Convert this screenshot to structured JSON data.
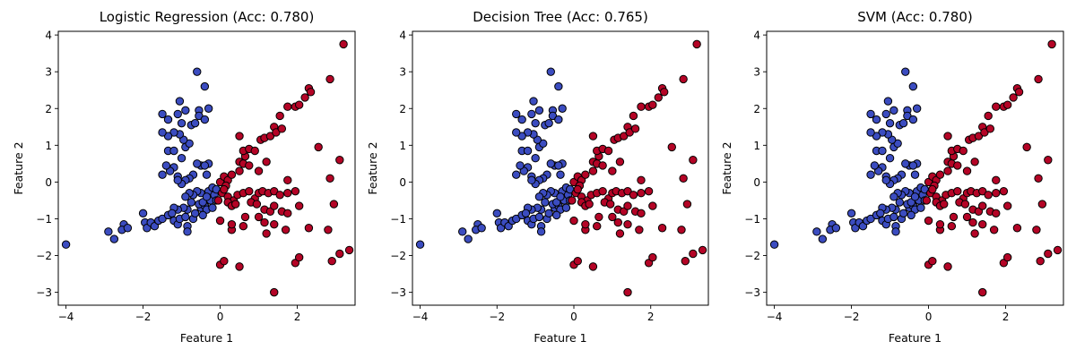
{
  "colors": {
    "class0": "#3b4cc0",
    "class1": "#b40426",
    "edge": "#000000"
  },
  "chart_data": [
    {
      "type": "scatter",
      "title": "Logistic Regression (Acc: 0.780)",
      "xlabel": "Feature 1",
      "ylabel": "Feature 2",
      "xlim": [
        -4.2,
        3.5
      ],
      "ylim": [
        -3.35,
        4.1
      ],
      "xticks": [
        -4,
        -2,
        0,
        2
      ],
      "yticks": [
        -3,
        -2,
        -1,
        0,
        1,
        2,
        3,
        4
      ],
      "grid": false,
      "legend": "none",
      "point_sets": "shared",
      "labels_source": "predictions"
    },
    {
      "type": "scatter",
      "title": "Decision Tree (Acc: 0.765)",
      "xlabel": "Feature 1",
      "ylabel": "Feature 2",
      "xlim": [
        -4.2,
        3.5
      ],
      "ylim": [
        -3.35,
        4.1
      ],
      "xticks": [
        -4,
        -2,
        0,
        2
      ],
      "yticks": [
        -3,
        -2,
        -1,
        0,
        1,
        2,
        3,
        4
      ],
      "grid": false,
      "legend": "none",
      "point_sets": "shared",
      "labels_source": "predictions"
    },
    {
      "type": "scatter",
      "title": "SVM (Acc: 0.780)",
      "xlabel": "Feature 1",
      "ylabel": "Feature 2",
      "xlim": [
        -4.2,
        3.5
      ],
      "ylim": [
        -3.35,
        4.1
      ],
      "xticks": [
        -4,
        -2,
        0,
        2
      ],
      "yticks": [
        -3,
        -2,
        -1,
        0,
        1,
        2,
        3,
        4
      ],
      "grid": false,
      "legend": "none",
      "point_sets": "shared",
      "labels_source": "predictions"
    }
  ],
  "points": {
    "class0": [
      [
        -4.0,
        -1.7
      ],
      [
        -2.9,
        -1.35
      ],
      [
        -2.75,
        -1.55
      ],
      [
        -2.5,
        -1.15
      ],
      [
        -2.55,
        -1.3
      ],
      [
        -2.4,
        -1.25
      ],
      [
        -2.0,
        -0.85
      ],
      [
        -1.95,
        -1.1
      ],
      [
        -1.9,
        -1.25
      ],
      [
        -1.8,
        -1.1
      ],
      [
        -1.7,
        -1.2
      ],
      [
        -1.6,
        -1.05
      ],
      [
        -1.5,
        -1.0
      ],
      [
        -1.35,
        -0.9
      ],
      [
        -1.2,
        -1.05
      ],
      [
        -1.1,
        -1.15
      ],
      [
        -1.05,
        -1.0
      ],
      [
        -0.85,
        -1.2
      ],
      [
        -0.85,
        -1.35
      ],
      [
        -0.7,
        -1.0
      ],
      [
        -0.5,
        -0.7
      ],
      [
        -0.4,
        -0.65
      ],
      [
        -0.25,
        -0.5
      ],
      [
        -0.3,
        -0.25
      ],
      [
        -0.15,
        -0.35
      ],
      [
        -0.2,
        -0.15
      ],
      [
        -0.1,
        -0.5
      ],
      [
        -0.3,
        0.5
      ],
      [
        -0.35,
        0.2
      ],
      [
        -0.5,
        0.45
      ],
      [
        -0.6,
        0.5
      ],
      [
        -0.7,
        0.2
      ],
      [
        -0.8,
        0.1
      ],
      [
        -0.9,
        0.05
      ],
      [
        -1.0,
        -0.05
      ],
      [
        -1.1,
        0.15
      ],
      [
        -1.2,
        0.4
      ],
      [
        -1.3,
        0.3
      ],
      [
        -1.4,
        0.45
      ],
      [
        -1.5,
        0.2
      ],
      [
        -1.35,
        0.85
      ],
      [
        -1.2,
        0.85
      ],
      [
        -1.0,
        0.65
      ],
      [
        -0.9,
        0.95
      ],
      [
        -0.8,
        1.05
      ],
      [
        -0.95,
        1.15
      ],
      [
        -1.05,
        1.3
      ],
      [
        -1.2,
        1.35
      ],
      [
        -1.35,
        1.25
      ],
      [
        -1.5,
        1.35
      ],
      [
        -1.35,
        1.7
      ],
      [
        -1.5,
        1.85
      ],
      [
        -1.1,
        1.85
      ],
      [
        -1.0,
        1.6
      ],
      [
        -0.9,
        1.95
      ],
      [
        -1.05,
        2.2
      ],
      [
        -0.75,
        1.55
      ],
      [
        -0.65,
        1.6
      ],
      [
        -0.55,
        1.95
      ],
      [
        -0.55,
        1.8
      ],
      [
        -0.4,
        1.7
      ],
      [
        -0.3,
        2.0
      ],
      [
        -0.4,
        2.6
      ],
      [
        -0.6,
        3.0
      ],
      [
        -0.85,
        -0.75
      ],
      [
        -0.95,
        -0.7
      ],
      [
        -1.1,
        -0.75
      ],
      [
        -1.2,
        -0.7
      ],
      [
        -1.25,
        -0.85
      ],
      [
        -0.75,
        -0.55
      ],
      [
        -0.65,
        -0.85
      ],
      [
        -0.55,
        -0.6
      ],
      [
        -0.45,
        -0.55
      ],
      [
        -0.35,
        -0.75
      ],
      [
        -0.2,
        -0.7
      ],
      [
        -0.5,
        -0.3
      ],
      [
        -0.6,
        -0.25
      ],
      [
        -0.7,
        -0.35
      ],
      [
        -0.8,
        -0.3
      ],
      [
        -0.9,
        -0.4
      ],
      [
        -0.35,
        -0.4
      ],
      [
        -0.1,
        -0.2
      ],
      [
        -0.4,
        0.45
      ],
      [
        -1.1,
        0.05
      ],
      [
        -0.9,
        -0.95
      ],
      [
        -0.45,
        -0.9
      ]
    ],
    "class1": [
      [
        0.0,
        0.0
      ],
      [
        0.1,
        0.15
      ],
      [
        0.2,
        0.05
      ],
      [
        0.3,
        0.2
      ],
      [
        0.15,
        -0.1
      ],
      [
        0.05,
        -0.3
      ],
      [
        0.2,
        -0.4
      ],
      [
        0.35,
        -0.5
      ],
      [
        0.45,
        -0.35
      ],
      [
        0.6,
        -0.3
      ],
      [
        0.75,
        -0.25
      ],
      [
        0.9,
        -0.45
      ],
      [
        1.0,
        -0.3
      ],
      [
        1.1,
        -0.25
      ],
      [
        1.25,
        -0.3
      ],
      [
        1.4,
        -0.25
      ],
      [
        1.55,
        -0.35
      ],
      [
        1.75,
        -0.3
      ],
      [
        1.95,
        -0.25
      ],
      [
        0.5,
        0.55
      ],
      [
        0.6,
        0.5
      ],
      [
        0.65,
        0.7
      ],
      [
        0.75,
        0.45
      ],
      [
        0.6,
        0.85
      ],
      [
        0.75,
        0.9
      ],
      [
        0.9,
        0.85
      ],
      [
        1.0,
        0.3
      ],
      [
        1.05,
        1.15
      ],
      [
        1.15,
        1.2
      ],
      [
        1.3,
        1.25
      ],
      [
        1.4,
        1.5
      ],
      [
        1.45,
        1.35
      ],
      [
        1.55,
        1.8
      ],
      [
        1.6,
        1.45
      ],
      [
        1.75,
        2.05
      ],
      [
        1.95,
        2.05
      ],
      [
        2.05,
        2.1
      ],
      [
        2.2,
        2.3
      ],
      [
        2.3,
        2.55
      ],
      [
        2.35,
        2.45
      ],
      [
        2.85,
        2.8
      ],
      [
        3.2,
        3.75
      ],
      [
        0.5,
        1.25
      ],
      [
        0.5,
        0.3
      ],
      [
        1.2,
        0.55
      ],
      [
        0.2,
        -0.55
      ],
      [
        0.3,
        -0.65
      ],
      [
        0.4,
        -0.6
      ],
      [
        0.8,
        -0.55
      ],
      [
        0.95,
        -0.6
      ],
      [
        1.15,
        -0.75
      ],
      [
        1.3,
        -0.8
      ],
      [
        1.4,
        -0.65
      ],
      [
        1.6,
        -0.8
      ],
      [
        1.75,
        -0.85
      ],
      [
        0.65,
        -0.95
      ],
      [
        1.0,
        -0.95
      ],
      [
        1.15,
        -1.1
      ],
      [
        1.4,
        -1.15
      ],
      [
        1.75,
        0.05
      ],
      [
        2.05,
        -0.65
      ],
      [
        2.55,
        0.95
      ],
      [
        2.85,
        0.1
      ],
      [
        3.1,
        0.6
      ],
      [
        2.95,
        -0.6
      ],
      [
        2.8,
        -1.3
      ],
      [
        0.3,
        -1.3
      ],
      [
        0.3,
        -1.15
      ],
      [
        0.6,
        -1.2
      ],
      [
        1.2,
        -1.4
      ],
      [
        1.7,
        -1.3
      ],
      [
        2.3,
        -1.25
      ],
      [
        0.0,
        -1.05
      ],
      [
        0.0,
        -2.25
      ],
      [
        0.1,
        -2.15
      ],
      [
        0.5,
        -2.3
      ],
      [
        1.4,
        -3.0
      ],
      [
        1.95,
        -2.2
      ],
      [
        2.05,
        -2.05
      ],
      [
        2.9,
        -2.15
      ],
      [
        3.1,
        -1.95
      ],
      [
        3.35,
        -1.85
      ],
      [
        -0.05,
        -0.5
      ],
      [
        0.1,
        -0.2
      ]
    ]
  }
}
